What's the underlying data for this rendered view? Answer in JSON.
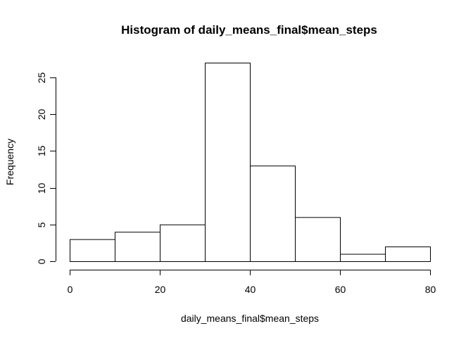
{
  "chart_data": {
    "type": "bar",
    "title": "Histogram of daily_means_final$mean_steps",
    "xlabel": "daily_means_final$mean_steps",
    "ylabel": "Frequency",
    "bins": [
      {
        "start": 0,
        "end": 10,
        "count": 3
      },
      {
        "start": 10,
        "end": 20,
        "count": 4
      },
      {
        "start": 20,
        "end": 30,
        "count": 5
      },
      {
        "start": 30,
        "end": 40,
        "count": 27
      },
      {
        "start": 40,
        "end": 50,
        "count": 13
      },
      {
        "start": 50,
        "end": 60,
        "count": 6
      },
      {
        "start": 60,
        "end": 70,
        "count": 1
      },
      {
        "start": 70,
        "end": 80,
        "count": 2
      }
    ],
    "xlim": [
      0,
      80
    ],
    "ylim": [
      0,
      27
    ],
    "xticks": [
      "0",
      "20",
      "40",
      "60",
      "80"
    ],
    "yticks": [
      "0",
      "5",
      "10",
      "15",
      "20",
      "25"
    ],
    "grid": false,
    "colors": {
      "bar_fill": "#ffffff",
      "bar_stroke": "#000000"
    }
  }
}
